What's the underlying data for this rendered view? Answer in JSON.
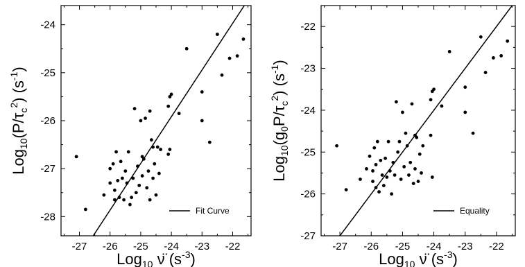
{
  "chart_data": [
    {
      "type": "scatter",
      "xlabel": {
        "prefix": "Log",
        "sub": "10",
        "symbol": "ν̈",
        "unit": "(s",
        "unit_sup": "-3",
        "unit_close": ")"
      },
      "ylabel": {
        "prefix": "Log",
        "sub": "10",
        "open": "(P/τ",
        "inner_sub": "c",
        "inner_sup": "2",
        "close": ")",
        "unit": "(s",
        "unit_sup": "-1",
        "unit_close": ")"
      },
      "xlim": [
        -27.6,
        -21.4
      ],
      "ylim": [
        -28.4,
        -23.6
      ],
      "xticks": [
        -27,
        -26,
        -25,
        -24,
        -23,
        -22
      ],
      "yticks": [
        -28,
        -27,
        -26,
        -25,
        -24
      ],
      "legend": {
        "label": "Fit Curve",
        "position": "bottom-right"
      },
      "line": {
        "x": [
          -26.55,
          -21.62
        ],
        "y": [
          -28.4,
          -23.6
        ]
      },
      "points": {
        "x": [
          -27.1,
          -26.8,
          -26.2,
          -26.0,
          -26.0,
          -25.9,
          -25.85,
          -25.85,
          -25.8,
          -25.75,
          -25.7,
          -25.65,
          -25.6,
          -25.55,
          -25.5,
          -25.45,
          -25.4,
          -25.35,
          -25.3,
          -25.25,
          -25.2,
          -25.15,
          -25.1,
          -25.05,
          -25.0,
          -24.95,
          -24.95,
          -24.9,
          -24.85,
          -24.8,
          -24.75,
          -24.7,
          -24.7,
          -24.65,
          -24.6,
          -24.6,
          -24.55,
          -24.5,
          -24.45,
          -24.4,
          -24.35,
          -24.1,
          -24.1,
          -24.05,
          -24.05,
          -24.0,
          -23.75,
          -23.5,
          -23.0,
          -23.0,
          -22.75,
          -22.5,
          -22.35,
          -22.1,
          -21.85,
          -21.65
        ],
        "y": [
          -26.75,
          -27.85,
          -27.55,
          -27.0,
          -27.3,
          -26.9,
          -27.45,
          -27.65,
          -26.65,
          -27.25,
          -27.6,
          -26.85,
          -27.2,
          -27.65,
          -27.05,
          -27.3,
          -26.65,
          -27.75,
          -27.6,
          -27.2,
          -25.75,
          -27.5,
          -26.95,
          -27.35,
          -26.0,
          -26.75,
          -27.15,
          -26.8,
          -25.95,
          -27.4,
          -27.05,
          -25.8,
          -27.65,
          -26.4,
          -26.55,
          -27.2,
          -26.9,
          -27.55,
          -26.55,
          -27.1,
          -26.6,
          -26.7,
          -25.7,
          -25.5,
          -26.6,
          -25.45,
          -25.85,
          -24.5,
          -25.4,
          -26.0,
          -26.45,
          -24.2,
          -25.05,
          -24.7,
          -24.65,
          -24.3
        ]
      }
    },
    {
      "type": "scatter",
      "xlabel": {
        "prefix": "Log",
        "sub": "10",
        "symbol": "ν̈",
        "unit": "(s",
        "unit_sup": "-3",
        "unit_close": ")"
      },
      "ylabel": {
        "prefix": "Log",
        "sub": "10",
        "open": "(g",
        "g_sub": "0",
        "mid": "P/τ",
        "inner_sub": "c",
        "inner_sup": "2",
        "close": ")",
        "unit": "(s",
        "unit_sup": "-1",
        "unit_close": ")"
      },
      "xlim": [
        -27.6,
        -21.4
      ],
      "ylim": [
        -27,
        -21.5
      ],
      "xticks": [
        -27,
        -26,
        -25,
        -24,
        -23,
        -22
      ],
      "yticks": [
        -27,
        -26,
        -25,
        -24,
        -23,
        -22
      ],
      "legend": {
        "label": "Equality",
        "position": "bottom-right"
      },
      "line": {
        "x": [
          -27.0,
          -21.5
        ],
        "y": [
          -27.0,
          -21.5
        ]
      },
      "points": {
        "x": [
          -27.1,
          -26.8,
          -26.35,
          -26.15,
          -26.05,
          -25.95,
          -25.95,
          -25.9,
          -25.85,
          -25.85,
          -25.8,
          -25.75,
          -25.7,
          -25.65,
          -25.6,
          -25.55,
          -25.5,
          -25.45,
          -25.4,
          -25.35,
          -25.3,
          -25.25,
          -25.2,
          -25.15,
          -25.1,
          -25.05,
          -25.0,
          -24.95,
          -24.9,
          -24.85,
          -24.8,
          -24.75,
          -24.7,
          -24.65,
          -24.6,
          -24.6,
          -24.55,
          -24.5,
          -24.45,
          -24.4,
          -24.35,
          -24.1,
          -24.1,
          -24.05,
          -24.05,
          -24.0,
          -23.75,
          -23.5,
          -23.0,
          -23.0,
          -22.75,
          -22.5,
          -22.35,
          -22.1,
          -21.85,
          -21.65
        ],
        "y": [
          -24.85,
          -25.9,
          -25.65,
          -25.4,
          -25.1,
          -25.45,
          -25.7,
          -24.9,
          -25.3,
          -25.85,
          -24.75,
          -25.95,
          -25.2,
          -25.55,
          -25.8,
          -25.15,
          -25.6,
          -24.75,
          -25.45,
          -26.0,
          -25.25,
          -25.55,
          -23.8,
          -25.0,
          -24.75,
          -25.65,
          -24.05,
          -25.35,
          -24.55,
          -24.85,
          -25.55,
          -25.25,
          -23.85,
          -25.75,
          -24.6,
          -25.4,
          -24.65,
          -25.7,
          -25.05,
          -25.5,
          -24.85,
          -24.6,
          -23.75,
          -23.55,
          -25.6,
          -23.5,
          -23.9,
          -22.6,
          -23.45,
          -24.05,
          -24.55,
          -22.25,
          -23.1,
          -22.75,
          -22.7,
          -22.35
        ]
      }
    }
  ]
}
